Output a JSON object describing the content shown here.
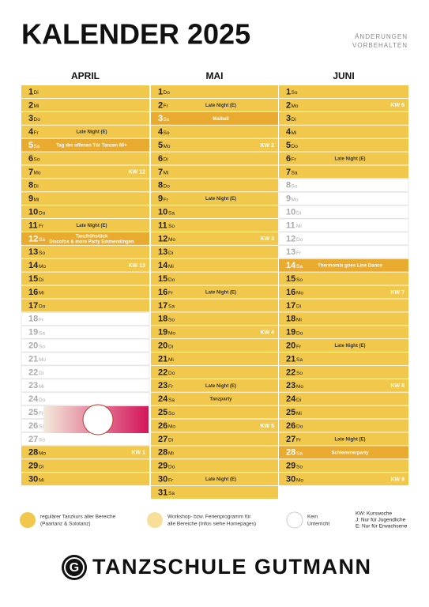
{
  "header": {
    "title": "KALENDER 2025",
    "note": [
      "ÄNDERUNGEN",
      "VORBEHALTEN"
    ]
  },
  "months": [
    {
      "name": "APRIL",
      "days": [
        {
          "d": 1,
          "w": "Di",
          "c": "#f1c84c"
        },
        {
          "d": 2,
          "w": "Mi",
          "c": "#f1c84c"
        },
        {
          "d": 3,
          "w": "Do",
          "c": "#f1c84c"
        },
        {
          "d": 4,
          "w": "Fr",
          "e": [
            "Late Night (E)"
          ],
          "c": "#f1c84c"
        },
        {
          "d": 5,
          "w": "Sa",
          "e": [
            "Tag der offenen Tür Tanzen 60+"
          ],
          "c": "#e8ab30"
        },
        {
          "d": 6,
          "w": "So",
          "c": "#f1c84c"
        },
        {
          "d": 7,
          "w": "Mo",
          "k": "KW 12",
          "c": "#f1c84c"
        },
        {
          "d": 8,
          "w": "Di",
          "c": "#f1c84c"
        },
        {
          "d": 9,
          "w": "Mi",
          "c": "#f1c84c"
        },
        {
          "d": 10,
          "w": "Do",
          "c": "#f1c84c"
        },
        {
          "d": 11,
          "w": "Fr",
          "e": [
            "Late Night (E)"
          ],
          "c": "#f1c84c"
        },
        {
          "d": 12,
          "w": "Sa",
          "e": [
            "Tanzfrühstück",
            "Discofox & more Party Emmendingen"
          ],
          "c": "#e8ab30"
        },
        {
          "d": 13,
          "w": "So",
          "c": "#f1c84c"
        },
        {
          "d": 14,
          "w": "Mo",
          "k": "KW 13",
          "c": "#f1c84c"
        },
        {
          "d": 15,
          "w": "Di",
          "c": "#f1c84c"
        },
        {
          "d": 16,
          "w": "Mi",
          "c": "#f1c84c"
        },
        {
          "d": 17,
          "w": "Do",
          "c": "#f1c84c"
        },
        {
          "d": 18,
          "w": "Fr",
          "c": "#ffffff"
        },
        {
          "d": 19,
          "w": "Sa",
          "c": "#ffffff"
        },
        {
          "d": 20,
          "w": "So",
          "c": "#ffffff"
        },
        {
          "d": 21,
          "w": "Mo",
          "c": "#ffffff"
        },
        {
          "d": 22,
          "w": "Di",
          "c": "#ffffff"
        },
        {
          "d": 23,
          "w": "Mi",
          "c": "#ffffff"
        },
        {
          "d": 24,
          "w": "Do",
          "c": "#ffffff"
        },
        {
          "d": 25,
          "w": "Fr",
          "c": "#ffffff"
        },
        {
          "d": 26,
          "w": "Sa",
          "c": "#ffffff"
        },
        {
          "d": 27,
          "w": "So",
          "c": "#ffffff"
        },
        {
          "d": 28,
          "w": "Mo",
          "k": "KW 1",
          "c": "#f1c84c"
        },
        {
          "d": 29,
          "w": "Di",
          "c": "#f1c84c"
        },
        {
          "d": 30,
          "w": "Mi",
          "c": "#f1c84c"
        }
      ]
    },
    {
      "name": "MAI",
      "days": [
        {
          "d": 1,
          "w": "Do",
          "c": "#f1c84c"
        },
        {
          "d": 2,
          "w": "Fr",
          "e": [
            "Late Night (E)"
          ],
          "c": "#f1c84c"
        },
        {
          "d": 3,
          "w": "Sa",
          "e": [
            "Maiball"
          ],
          "c": "#e8ab30"
        },
        {
          "d": 4,
          "w": "So",
          "c": "#f1c84c"
        },
        {
          "d": 5,
          "w": "Mo",
          "k": "KW 2",
          "c": "#f1c84c"
        },
        {
          "d": 6,
          "w": "Di",
          "c": "#f1c84c"
        },
        {
          "d": 7,
          "w": "Mi",
          "c": "#f1c84c"
        },
        {
          "d": 8,
          "w": "Do",
          "c": "#f1c84c"
        },
        {
          "d": 9,
          "w": "Fr",
          "e": [
            "Late Night (E)"
          ],
          "c": "#f1c84c"
        },
        {
          "d": 10,
          "w": "Sa",
          "c": "#f1c84c"
        },
        {
          "d": 11,
          "w": "So",
          "c": "#f1c84c"
        },
        {
          "d": 12,
          "w": "Mo",
          "k": "KW 3",
          "c": "#f1c84c"
        },
        {
          "d": 13,
          "w": "Di",
          "c": "#f1c84c"
        },
        {
          "d": 14,
          "w": "Mi",
          "c": "#f1c84c"
        },
        {
          "d": 15,
          "w": "Do",
          "c": "#f1c84c"
        },
        {
          "d": 16,
          "w": "Fr",
          "e": [
            "Late Night (E)"
          ],
          "c": "#f1c84c"
        },
        {
          "d": 17,
          "w": "Sa",
          "c": "#f1c84c"
        },
        {
          "d": 18,
          "w": "So",
          "c": "#f1c84c"
        },
        {
          "d": 19,
          "w": "Mo",
          "k": "KW 4",
          "c": "#f1c84c"
        },
        {
          "d": 20,
          "w": "Di",
          "c": "#f1c84c"
        },
        {
          "d": 21,
          "w": "Mi",
          "c": "#f1c84c"
        },
        {
          "d": 22,
          "w": "Do",
          "c": "#f1c84c"
        },
        {
          "d": 23,
          "w": "Fr",
          "e": [
            "Late Night (E)"
          ],
          "c": "#f1c84c"
        },
        {
          "d": 24,
          "w": "Sa",
          "e": [
            "Tanzparty"
          ],
          "c": "#f1c84c"
        },
        {
          "d": 25,
          "w": "So",
          "c": "#f1c84c"
        },
        {
          "d": 26,
          "w": "Mo",
          "k": "KW 5",
          "c": "#f1c84c"
        },
        {
          "d": 27,
          "w": "Di",
          "c": "#f1c84c"
        },
        {
          "d": 28,
          "w": "Mi",
          "c": "#f1c84c"
        },
        {
          "d": 29,
          "w": "Do",
          "c": "#f1c84c"
        },
        {
          "d": 30,
          "w": "Fr",
          "e": [
            "Late Night (E)"
          ],
          "c": "#f1c84c"
        },
        {
          "d": 31,
          "w": "Sa",
          "c": "#f1c84c"
        }
      ]
    },
    {
      "name": "JUNI",
      "days": [
        {
          "d": 1,
          "w": "So",
          "c": "#f1c84c"
        },
        {
          "d": 2,
          "w": "Mo",
          "k": "KW 6",
          "c": "#f1c84c"
        },
        {
          "d": 3,
          "w": "Di",
          "c": "#f1c84c"
        },
        {
          "d": 4,
          "w": "Mi",
          "c": "#f1c84c"
        },
        {
          "d": 5,
          "w": "Do",
          "c": "#f1c84c"
        },
        {
          "d": 6,
          "w": "Fr",
          "e": [
            "Late Night (E)"
          ],
          "c": "#f1c84c"
        },
        {
          "d": 7,
          "w": "Sa",
          "c": "#f1c84c"
        },
        {
          "d": 8,
          "w": "So",
          "c": "#ffffff"
        },
        {
          "d": 9,
          "w": "Mo",
          "c": "#ffffff"
        },
        {
          "d": 10,
          "w": "Di",
          "c": "#ffffff"
        },
        {
          "d": 11,
          "w": "Mi",
          "c": "#ffffff"
        },
        {
          "d": 12,
          "w": "Do",
          "c": "#ffffff"
        },
        {
          "d": 13,
          "w": "Fr",
          "c": "#ffffff"
        },
        {
          "d": 14,
          "w": "Sa",
          "e": [
            "Thermomix goes Line Dance"
          ],
          "c": "#e8ab30"
        },
        {
          "d": 15,
          "w": "So",
          "c": "#f1c84c"
        },
        {
          "d": 16,
          "w": "Mo",
          "k": "KW 7",
          "c": "#f1c84c"
        },
        {
          "d": 17,
          "w": "Di",
          "c": "#f1c84c"
        },
        {
          "d": 18,
          "w": "Mi",
          "c": "#f1c84c"
        },
        {
          "d": 19,
          "w": "Do",
          "c": "#f1c84c"
        },
        {
          "d": 20,
          "w": "Fr",
          "e": [
            "Late Night (E)"
          ],
          "c": "#f1c84c"
        },
        {
          "d": 21,
          "w": "Sa",
          "c": "#f1c84c"
        },
        {
          "d": 22,
          "w": "So",
          "c": "#f1c84c"
        },
        {
          "d": 23,
          "w": "Mo",
          "k": "KW 8",
          "c": "#f1c84c"
        },
        {
          "d": 24,
          "w": "Di",
          "c": "#f1c84c"
        },
        {
          "d": 25,
          "w": "Mi",
          "c": "#f1c84c"
        },
        {
          "d": 26,
          "w": "Do",
          "c": "#f1c84c"
        },
        {
          "d": 27,
          "w": "Fr",
          "e": [
            "Late Night (E)"
          ],
          "c": "#f1c84c"
        },
        {
          "d": 28,
          "w": "Sa",
          "e": [
            "Schlemmerparty"
          ],
          "c": "#e8ab30"
        },
        {
          "d": 29,
          "w": "So",
          "c": "#f1c84c"
        },
        {
          "d": 30,
          "w": "Mo",
          "k": "KW 9",
          "c": "#f1c84c"
        }
      ]
    }
  ],
  "legend": [
    {
      "color": "#f1c84c",
      "text": [
        "regulärer Tanzkurs aller Bereiche",
        "(Paartanz & Solotanz)"
      ]
    },
    {
      "color": "#f7df9a",
      "text": [
        "Workshop- bzw. Ferienprogramm für",
        "alle Bereiche (Infos siehe Homepages)"
      ]
    },
    {
      "color": "#ffffff",
      "text": [
        "Kein",
        "Unterricht"
      ]
    }
  ],
  "abbreviations": [
    "KW: Kurswoche",
    "J: Nur für Jugendliche",
    "E: Nur für Erwachsene"
  ],
  "footer": {
    "logo": "G",
    "name": "TANZSCHULE GUTMANN"
  }
}
